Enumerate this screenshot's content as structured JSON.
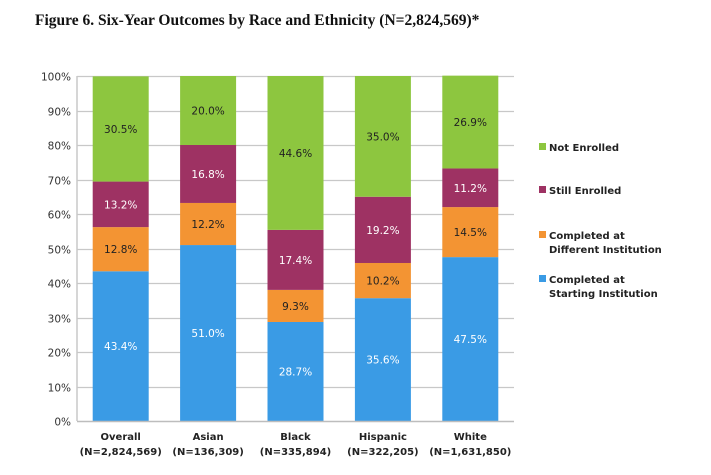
{
  "title": "Figure 6. Six-Year Outcomes by Race and Ethnicity (N=2,824,569)*",
  "chart_data": {
    "type": "bar",
    "stacked": true,
    "title": "Figure 6. Six-Year Outcomes by Race and Ethnicity (N=2,824,569)*",
    "xlabel": "",
    "ylabel": "",
    "ylim": [
      0,
      100
    ],
    "yticks": [
      "0%",
      "10%",
      "20%",
      "30%",
      "40%",
      "50%",
      "60%",
      "70%",
      "80%",
      "90%",
      "100%"
    ],
    "grid": true,
    "legend_position": "right",
    "categories": [
      {
        "name": "Overall",
        "n": "(N=2,824,569)"
      },
      {
        "name": "Asian",
        "n": "(N=136,309)"
      },
      {
        "name": "Black",
        "n": "(N=335,894)"
      },
      {
        "name": "Hispanic",
        "n": "(N=322,205)"
      },
      {
        "name": "White",
        "n": "(N=1,631,850)"
      }
    ],
    "series": [
      {
        "name": "Completed at Starting Institution",
        "legend_lines": [
          "Completed at",
          "Starting Institution"
        ],
        "color": "#3A9BE5",
        "label_color": "#ffffff",
        "values": [
          43.4,
          51.0,
          28.7,
          35.6,
          47.5
        ]
      },
      {
        "name": "Completed at Different Institution",
        "legend_lines": [
          "Completed at",
          "Different Institution"
        ],
        "color": "#F39433",
        "label_color": "#222222",
        "values": [
          12.8,
          12.2,
          9.3,
          10.2,
          14.5
        ]
      },
      {
        "name": "Still Enrolled",
        "legend_lines": [
          "Still Enrolled"
        ],
        "color": "#9E3263",
        "label_color": "#ffffff",
        "values": [
          13.2,
          16.8,
          17.4,
          19.2,
          11.2
        ]
      },
      {
        "name": "Not Enrolled",
        "legend_lines": [
          "Not Enrolled"
        ],
        "color": "#8DC63F",
        "label_color": "#222222",
        "values": [
          30.5,
          20.0,
          44.6,
          35.0,
          26.9
        ]
      }
    ]
  }
}
